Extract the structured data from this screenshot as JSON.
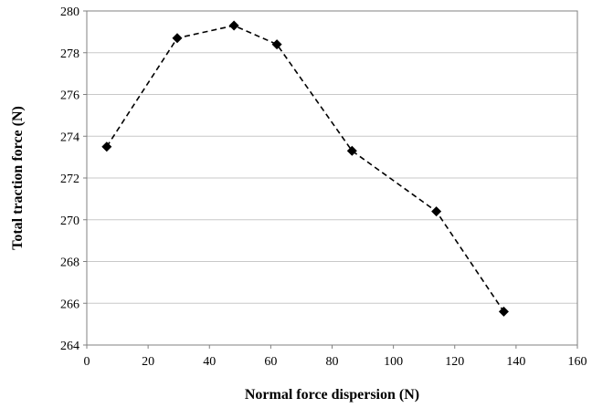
{
  "chart_data": {
    "type": "line",
    "title": "",
    "xlabel": "Normal force dispersion (N)",
    "ylabel": "Total traction force (N)",
    "xlim": [
      0,
      160
    ],
    "ylim": [
      264,
      280
    ],
    "xticks": [
      0,
      20,
      40,
      60,
      80,
      100,
      120,
      140,
      160
    ],
    "yticks": [
      264,
      266,
      268,
      270,
      272,
      274,
      276,
      278,
      280
    ],
    "grid": "horizontal",
    "legend": "none",
    "series": [
      {
        "x": [
          6.5,
          29.5,
          48,
          62,
          86.5,
          114,
          136
        ],
        "y": [
          273.5,
          278.7,
          279.3,
          278.4,
          273.3,
          270.4,
          265.6
        ],
        "line_style": "dashed",
        "marker": "diamond",
        "color": "#000000"
      }
    ]
  }
}
